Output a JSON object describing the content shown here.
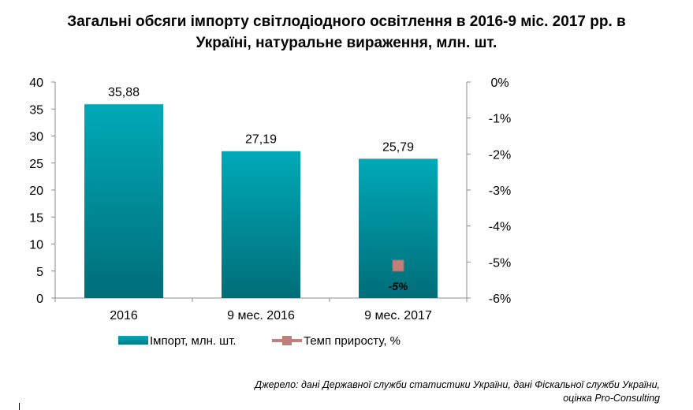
{
  "title_lines": [
    "Загальні обсяги імпорту світлодіодного освітлення в 2016-9 міс. 2017 рр. в",
    "Україні, натуральне вираження, млн. шт."
  ],
  "source_lines": [
    "Джерело: дані Державної служби статистики України, дані Фіскальної служби України,",
    "оцінка Pro-Consulting"
  ],
  "chart_data": {
    "type": "bar",
    "categories": [
      "2016",
      "9 мес. 2016",
      "9 мес. 2017"
    ],
    "series": [
      {
        "name": "Імпорт, млн. шт.",
        "type": "bar",
        "axis": "left",
        "values": [
          35.88,
          27.19,
          25.79
        ],
        "labels": [
          "35,88",
          "27,19",
          "25,79"
        ],
        "color": "#009eab"
      },
      {
        "name": "Темп приросту, %",
        "type": "line",
        "axis": "right",
        "values": [
          null,
          null,
          -5.1
        ],
        "labels": [
          "",
          "",
          "-5%"
        ],
        "color": "#c0807a"
      }
    ],
    "y_left": {
      "min": 0,
      "max": 40,
      "ticks": [
        "0",
        "5",
        "10",
        "15",
        "20",
        "25",
        "30",
        "35",
        "40"
      ]
    },
    "y_right": {
      "min": -6,
      "max": 0,
      "ticks": [
        "0%",
        "-1%",
        "-2%",
        "-3%",
        "-4%",
        "-5%",
        "-6%"
      ]
    },
    "grid": false,
    "legend_position": "bottom"
  }
}
